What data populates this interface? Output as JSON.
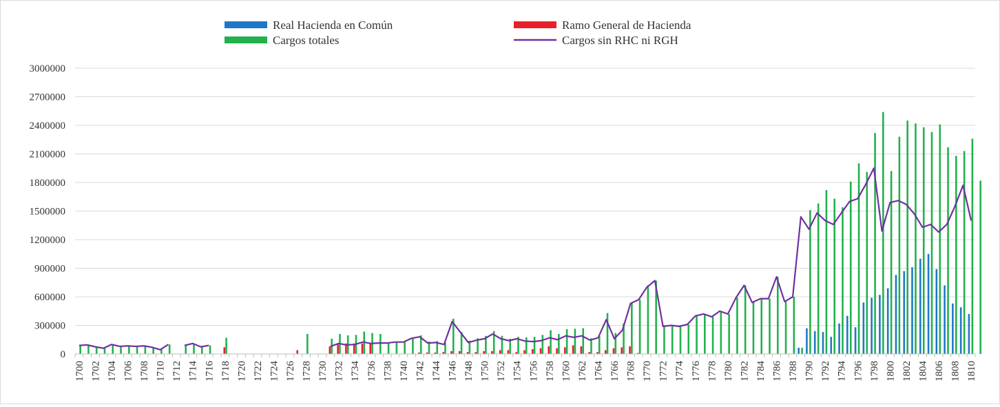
{
  "chart_data": {
    "type": "bar",
    "title": "",
    "xlabel": "",
    "ylabel": "",
    "ylim": [
      0,
      3000000
    ],
    "y_ticks": [
      "0",
      "300000",
      "600000",
      "900000",
      "1200000",
      "1500000",
      "1800000",
      "2100000",
      "2400000",
      "2700000",
      "3000000"
    ],
    "x_start": 1700,
    "x_end": 1810,
    "x_tick_labels": [
      "1700",
      "1702",
      "1704",
      "1706",
      "1708",
      "1710",
      "1712",
      "1714",
      "1716",
      "1718",
      "1720",
      "1722",
      "1724",
      "1726",
      "1728",
      "1730",
      "1732",
      "1734",
      "1736",
      "1738",
      "1740",
      "1742",
      "1744",
      "1746",
      "1748",
      "1750",
      "1752",
      "1754",
      "1756",
      "1758",
      "1760",
      "1762",
      "1764",
      "1766",
      "1768",
      "1770",
      "1772",
      "1774",
      "1776",
      "1778",
      "1780",
      "1782",
      "1784",
      "1786",
      "1788",
      "1790",
      "1792",
      "1794",
      "1796",
      "1798",
      "1800",
      "1802",
      "1804",
      "1806",
      "1808",
      "1810"
    ],
    "grid": "horizontal",
    "legend_position": "top",
    "series": [
      {
        "name": "Real Hacienda en Común",
        "kind": "bar",
        "color": "#1f77c8",
        "values": [
          0,
          0,
          0,
          0,
          0,
          0,
          0,
          0,
          0,
          0,
          0,
          0,
          0,
          0,
          0,
          0,
          0,
          0,
          0,
          0,
          0,
          0,
          0,
          0,
          0,
          0,
          0,
          0,
          0,
          0,
          0,
          0,
          0,
          0,
          0,
          0,
          0,
          0,
          0,
          0,
          0,
          0,
          0,
          0,
          0,
          0,
          0,
          0,
          0,
          0,
          0,
          0,
          0,
          0,
          0,
          0,
          0,
          0,
          0,
          0,
          0,
          0,
          0,
          0,
          0,
          0,
          0,
          0,
          0,
          0,
          0,
          0,
          0,
          0,
          0,
          0,
          0,
          0,
          0,
          0,
          0,
          0,
          0,
          0,
          0,
          0,
          0,
          0,
          0,
          65000,
          270000,
          240000,
          230000,
          180000,
          320000,
          400000,
          280000,
          540000,
          590000,
          620000,
          690000,
          830000,
          870000,
          910000,
          1000000,
          1050000,
          890000,
          720000,
          530000,
          490000,
          420000
        ]
      },
      {
        "name": "Ramo General de Hacienda",
        "kind": "bar",
        "color": "#e8202a",
        "values": [
          0,
          0,
          0,
          0,
          0,
          0,
          0,
          0,
          0,
          0,
          0,
          0,
          0,
          0,
          0,
          0,
          0,
          0,
          70000,
          0,
          0,
          0,
          0,
          0,
          0,
          0,
          0,
          40000,
          0,
          0,
          0,
          80000,
          100000,
          110000,
          110000,
          110000,
          110000,
          0,
          0,
          0,
          0,
          0,
          15000,
          15000,
          15000,
          20000,
          30000,
          30000,
          20000,
          20000,
          30000,
          30000,
          40000,
          40000,
          20000,
          40000,
          50000,
          60000,
          80000,
          60000,
          70000,
          90000,
          80000,
          20000,
          20000,
          40000,
          60000,
          70000,
          80000,
          10000,
          0,
          0,
          0,
          0,
          0,
          0,
          0,
          0,
          0,
          0,
          0,
          0,
          0,
          0,
          0,
          0,
          0,
          0,
          0,
          0,
          0,
          0,
          0,
          0,
          0,
          0,
          0,
          0,
          0,
          0,
          0,
          0,
          0,
          0,
          0,
          0,
          0,
          0,
          0,
          0,
          0
        ]
      },
      {
        "name": "Cargos totales",
        "kind": "bar",
        "color": "#22b14c",
        "values": [
          90000,
          95000,
          75000,
          60000,
          100000,
          80000,
          85000,
          80000,
          85000,
          70000,
          45000,
          100000,
          0,
          90000,
          110000,
          75000,
          90000,
          0,
          170000,
          0,
          0,
          0,
          0,
          0,
          0,
          0,
          0,
          0,
          210000,
          0,
          0,
          160000,
          210000,
          195000,
          200000,
          235000,
          220000,
          210000,
          115000,
          130000,
          125000,
          165000,
          195000,
          130000,
          135000,
          120000,
          370000,
          230000,
          140000,
          165000,
          190000,
          240000,
          190000,
          160000,
          180000,
          175000,
          180000,
          200000,
          250000,
          210000,
          260000,
          265000,
          270000,
          165000,
          190000,
          430000,
          220000,
          320000,
          540000,
          570000,
          720000,
          770000,
          290000,
          300000,
          290000,
          310000,
          400000,
          420000,
          390000,
          450000,
          420000,
          590000,
          720000,
          540000,
          580000,
          580000,
          810000,
          550000,
          600000,
          65000,
          1510000,
          1580000,
          1720000,
          1630000,
          1540000,
          1810000,
          2000000,
          1910000,
          2320000,
          2540000,
          1920000,
          2280000,
          2450000,
          2420000,
          2380000,
          2330000,
          2410000,
          2170000,
          2080000,
          2130000,
          2260000,
          1820000
        ]
      },
      {
        "name": "Cargos sin RHC ni RGH",
        "kind": "line",
        "color": "#7030a0",
        "values": [
          90000,
          95000,
          75000,
          60000,
          100000,
          80000,
          85000,
          80000,
          85000,
          70000,
          45000,
          100000,
          null,
          90000,
          110000,
          75000,
          90000,
          null,
          null,
          null,
          null,
          null,
          null,
          null,
          null,
          null,
          null,
          null,
          null,
          null,
          null,
          80000,
          110000,
          95000,
          100000,
          125000,
          110000,
          115000,
          115000,
          125000,
          125000,
          165000,
          180000,
          115000,
          120000,
          100000,
          340000,
          230000,
          120000,
          145000,
          160000,
          210000,
          160000,
          140000,
          160000,
          135000,
          130000,
          140000,
          170000,
          150000,
          190000,
          175000,
          190000,
          145000,
          170000,
          360000,
          160000,
          250000,
          530000,
          570000,
          700000,
          770000,
          290000,
          300000,
          290000,
          310000,
          400000,
          420000,
          390000,
          450000,
          420000,
          590000,
          720000,
          540000,
          580000,
          580000,
          810000,
          550000,
          600000,
          1440000,
          1310000,
          1480000,
          1400000,
          1360000,
          1480000,
          1600000,
          1630000,
          1780000,
          1950000,
          1290000,
          1590000,
          1610000,
          1570000,
          1470000,
          1330000,
          1360000,
          1280000,
          1360000,
          1550000,
          1770000,
          1400000
        ]
      }
    ]
  }
}
